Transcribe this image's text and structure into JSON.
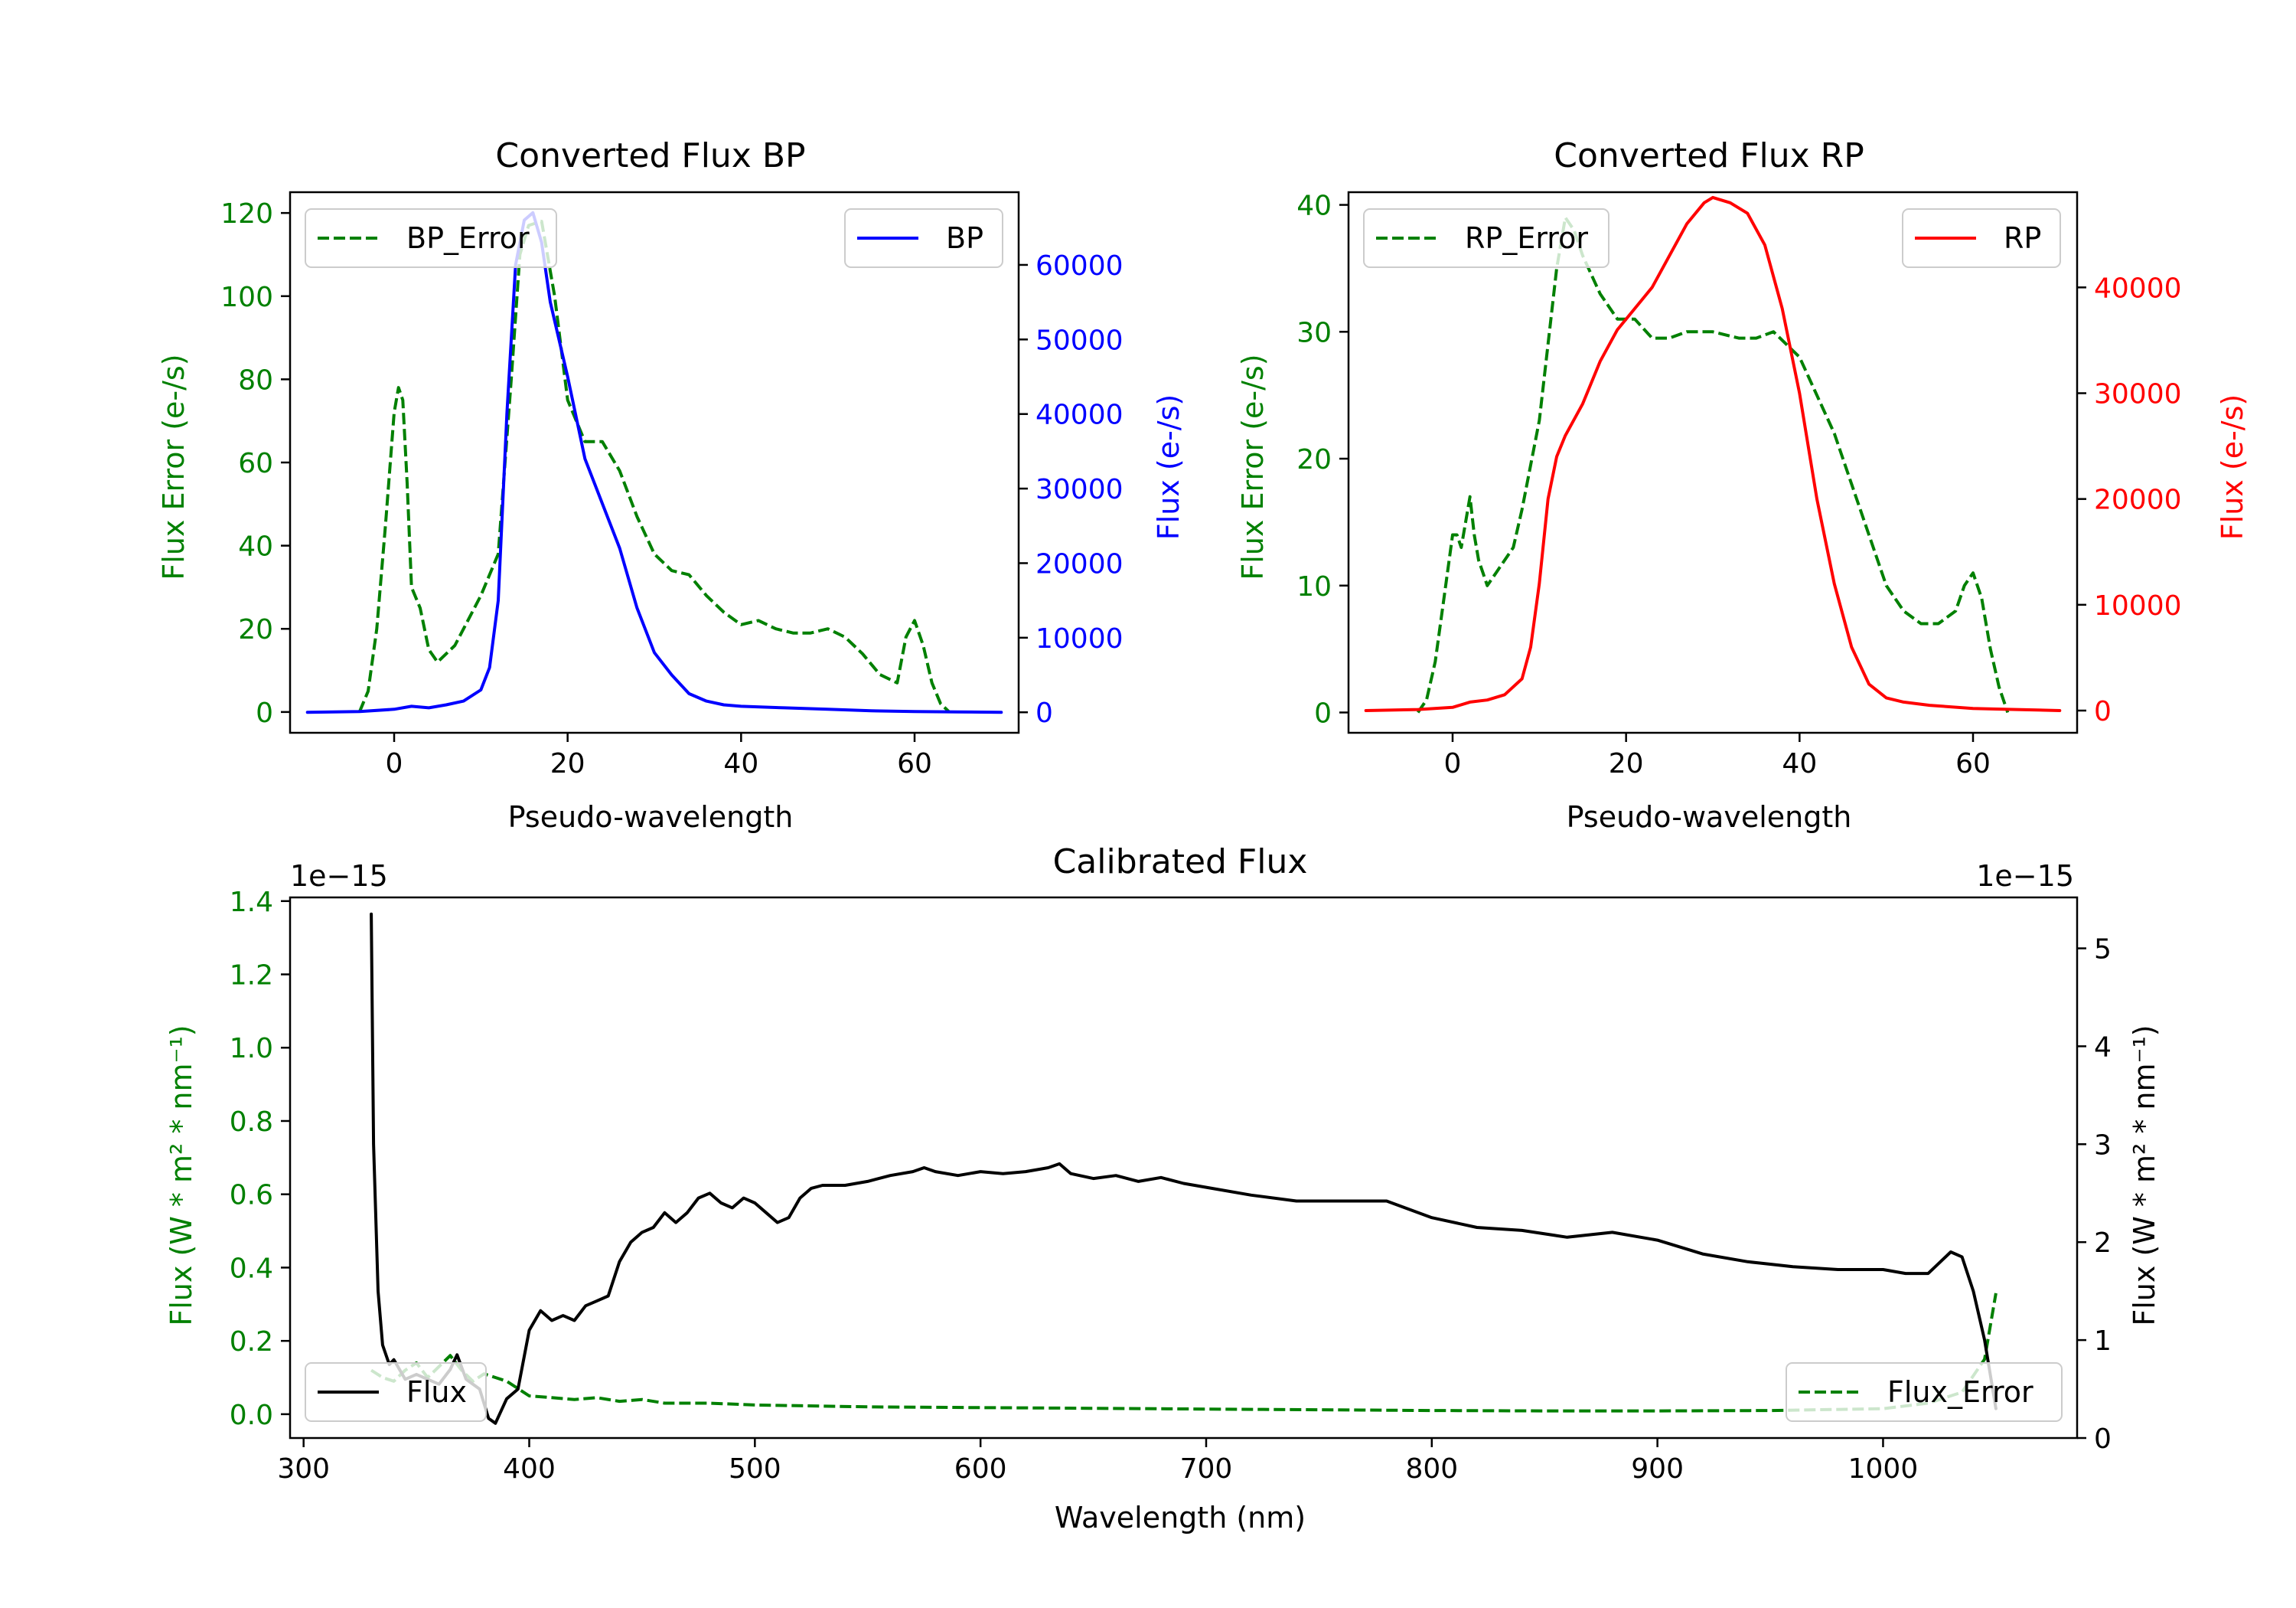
{
  "figure": {
    "background": "#ffffff"
  },
  "chart_data": [
    {
      "id": "bp",
      "type": "line",
      "title": "Converted Flux BP",
      "xlabel": "Pseudo-wavelength",
      "ylabel_left": "Flux Error (e-/s)",
      "ylabel_right": "Flux (e-/s)",
      "xlim": [
        -12,
        72
      ],
      "ylim_left": [
        -5,
        125
      ],
      "ylim_right": [
        -2750,
        69750
      ],
      "xticks": [
        0,
        20,
        40,
        60
      ],
      "yticks_left": [
        0,
        20,
        40,
        60,
        80,
        100,
        120
      ],
      "yticks_right": [
        0,
        10000,
        20000,
        30000,
        40000,
        50000,
        60000
      ],
      "left_color": "#008000",
      "right_color": "#0000ff",
      "legend_left_position": "top-left",
      "legend_right_position": "top-right",
      "series": [
        {
          "name": "BP_Error",
          "axis": "left",
          "style": "dashed",
          "color": "#008000",
          "x": [
            -4,
            -3,
            -2,
            -1,
            0,
            0.5,
            1,
            1.5,
            2,
            3,
            4,
            5,
            6,
            7,
            8,
            10,
            12,
            13.5,
            14.5,
            15.5,
            17,
            18.5,
            20,
            22,
            24,
            26,
            28,
            30,
            32,
            34,
            36,
            38,
            40,
            42,
            44,
            46,
            48,
            50,
            52,
            54,
            56,
            58,
            59,
            60,
            61,
            62,
            63,
            64
          ],
          "values": [
            0,
            5,
            20,
            45,
            72,
            78,
            75,
            55,
            30,
            25,
            15,
            12,
            14,
            16,
            20,
            28,
            38,
            80,
            110,
            117,
            118,
            100,
            75,
            65,
            65,
            58,
            47,
            38,
            34,
            33,
            28,
            24,
            21,
            22,
            20,
            19,
            19,
            20,
            18,
            14,
            9,
            7,
            18,
            22,
            16,
            7,
            2,
            0
          ]
        },
        {
          "name": "BP",
          "axis": "right",
          "style": "solid",
          "color": "#0000ff",
          "x": [
            -10,
            -4,
            0,
            2,
            4,
            6,
            8,
            10,
            11,
            12,
            13,
            14,
            15,
            16,
            17,
            18,
            20,
            22,
            24,
            26,
            28,
            30,
            32,
            34,
            36,
            38,
            40,
            45,
            50,
            55,
            60,
            65,
            70
          ],
          "values": [
            0,
            100,
            400,
            800,
            600,
            1000,
            1500,
            3000,
            6000,
            15000,
            40000,
            60000,
            66000,
            67000,
            63000,
            55000,
            45000,
            34000,
            28000,
            22000,
            14000,
            8000,
            5000,
            2500,
            1500,
            1000,
            800,
            600,
            400,
            200,
            100,
            50,
            0
          ]
        }
      ]
    },
    {
      "id": "rp",
      "type": "line",
      "title": "Converted Flux RP",
      "xlabel": "Pseudo-wavelength",
      "ylabel_left": "Flux Error (e-/s)",
      "ylabel_right": "Flux (e-/s)",
      "xlim": [
        -12,
        72
      ],
      "ylim_left": [
        -1.6,
        41
      ],
      "ylim_right": [
        -2100,
        49000
      ],
      "xticks": [
        0,
        20,
        40,
        60
      ],
      "yticks_left": [
        0,
        10,
        20,
        30,
        40
      ],
      "yticks_right": [
        0,
        10000,
        20000,
        30000,
        40000
      ],
      "left_color": "#008000",
      "right_color": "#ff0000",
      "legend_left_position": "top-left",
      "legend_right_position": "top-right",
      "series": [
        {
          "name": "RP_Error",
          "axis": "left",
          "style": "dashed",
          "color": "#008000",
          "x": [
            -4,
            -3,
            -2,
            -1,
            0,
            0.5,
            1,
            1.5,
            2,
            2.5,
            3,
            3.5,
            4,
            5,
            6,
            7,
            8,
            10,
            12,
            13,
            14,
            15,
            17,
            19,
            21,
            23,
            25,
            27,
            30,
            33,
            35,
            37,
            40,
            42,
            44,
            46,
            48,
            50,
            52,
            54,
            56,
            58,
            59,
            60,
            61,
            62,
            63,
            64
          ],
          "values": [
            0,
            1,
            4,
            9,
            14,
            14,
            13,
            15,
            17,
            14,
            12,
            11,
            10,
            11,
            12,
            13,
            16,
            23,
            35,
            39,
            38,
            36,
            33,
            31,
            31,
            29.5,
            29.5,
            30,
            30,
            29.5,
            29.5,
            30,
            28,
            25,
            22,
            18,
            14,
            10,
            8,
            7,
            7,
            8,
            10,
            11,
            9,
            5,
            2,
            0
          ]
        },
        {
          "name": "RP",
          "axis": "right",
          "style": "solid",
          "color": "#ff0000",
          "x": [
            -10,
            -4,
            0,
            2,
            4,
            6,
            8,
            9,
            10,
            11,
            12,
            13,
            15,
            17,
            19,
            21,
            23,
            25,
            27,
            29,
            30,
            32,
            34,
            36,
            38,
            40,
            42,
            44,
            46,
            48,
            50,
            52,
            55,
            60,
            65,
            70
          ],
          "values": [
            0,
            100,
            300,
            800,
            1000,
            1500,
            3000,
            6000,
            12000,
            20000,
            24000,
            26000,
            29000,
            33000,
            36000,
            38000,
            40000,
            43000,
            46000,
            48000,
            48500,
            48000,
            47000,
            44000,
            38000,
            30000,
            20000,
            12000,
            6000,
            2500,
            1200,
            800,
            500,
            200,
            100,
            0
          ]
        }
      ]
    },
    {
      "id": "cal",
      "type": "line",
      "title": "Calibrated Flux",
      "xlabel": "Wavelength (nm)",
      "ylabel_left": "Flux (W * m² * nm⁻¹)",
      "ylabel_right": "Flux (W * m² * nm⁻¹)",
      "offset_left": "1e−15",
      "offset_right": "1e−15",
      "xlim": [
        294,
        1086
      ],
      "ylim_left": [
        -0.065,
        1.41
      ],
      "ylim_right": [
        0,
        5.52
      ],
      "xticks": [
        300,
        400,
        500,
        600,
        700,
        800,
        900,
        1000
      ],
      "yticks_left": [
        0.0,
        0.2,
        0.4,
        0.6,
        0.8,
        1.0,
        1.2,
        1.4
      ],
      "ytick_labels_left": [
        "0.0",
        "0.2",
        "0.4",
        "0.6",
        "0.8",
        "1.0",
        "1.2",
        "1.4"
      ],
      "yticks_right": [
        0,
        1,
        2,
        3,
        4,
        5
      ],
      "left_color": "#008000",
      "right_color": "#000000",
      "legend_left_position": "bottom-left",
      "legend_right_position": "bottom-right",
      "series": [
        {
          "name": "Flux_Error",
          "axis": "left",
          "style": "dashed",
          "color": "#008000",
          "x": [
            330,
            335,
            340,
            345,
            350,
            355,
            360,
            365,
            370,
            375,
            380,
            385,
            390,
            395,
            400,
            410,
            420,
            430,
            440,
            450,
            460,
            480,
            500,
            550,
            600,
            650,
            700,
            750,
            800,
            850,
            900,
            950,
            1000,
            1020,
            1035,
            1045,
            1050
          ],
          "values": [
            0.12,
            0.1,
            0.09,
            0.12,
            0.14,
            0.1,
            0.13,
            0.16,
            0.12,
            0.09,
            0.11,
            0.1,
            0.09,
            0.07,
            0.05,
            0.045,
            0.04,
            0.045,
            0.035,
            0.04,
            0.03,
            0.03,
            0.025,
            0.02,
            0.018,
            0.016,
            0.014,
            0.012,
            0.01,
            0.009,
            0.009,
            0.01,
            0.015,
            0.03,
            0.06,
            0.15,
            0.33
          ]
        },
        {
          "name": "Flux",
          "axis": "right",
          "style": "solid",
          "color": "#000000",
          "x": [
            330,
            331,
            333,
            335,
            338,
            340,
            345,
            350,
            355,
            360,
            365,
            368,
            372,
            378,
            382,
            385,
            390,
            395,
            400,
            405,
            410,
            415,
            420,
            425,
            430,
            435,
            440,
            445,
            450,
            455,
            460,
            465,
            470,
            475,
            480,
            485,
            490,
            495,
            500,
            505,
            510,
            515,
            520,
            525,
            530,
            540,
            550,
            560,
            570,
            575,
            580,
            590,
            600,
            610,
            620,
            630,
            635,
            640,
            650,
            660,
            670,
            680,
            690,
            700,
            720,
            740,
            760,
            780,
            800,
            820,
            840,
            860,
            880,
            900,
            920,
            940,
            960,
            980,
            1000,
            1010,
            1020,
            1030,
            1035,
            1040,
            1045,
            1050
          ],
          "values": [
            5.35,
            3.0,
            1.5,
            0.95,
            0.75,
            0.8,
            0.6,
            0.65,
            0.6,
            0.55,
            0.7,
            0.85,
            0.6,
            0.5,
            0.2,
            0.15,
            0.4,
            0.5,
            1.1,
            1.3,
            1.2,
            1.25,
            1.2,
            1.35,
            1.4,
            1.45,
            1.8,
            2.0,
            2.1,
            2.15,
            2.3,
            2.2,
            2.3,
            2.45,
            2.5,
            2.4,
            2.35,
            2.45,
            2.4,
            2.3,
            2.2,
            2.25,
            2.45,
            2.55,
            2.58,
            2.58,
            2.62,
            2.68,
            2.72,
            2.76,
            2.72,
            2.68,
            2.72,
            2.7,
            2.72,
            2.76,
            2.8,
            2.7,
            2.65,
            2.68,
            2.62,
            2.66,
            2.6,
            2.56,
            2.48,
            2.42,
            2.42,
            2.42,
            2.25,
            2.15,
            2.12,
            2.05,
            2.1,
            2.02,
            1.88,
            1.8,
            1.75,
            1.72,
            1.72,
            1.68,
            1.68,
            1.9,
            1.85,
            1.5,
            1.0,
            0.3
          ]
        }
      ]
    }
  ]
}
